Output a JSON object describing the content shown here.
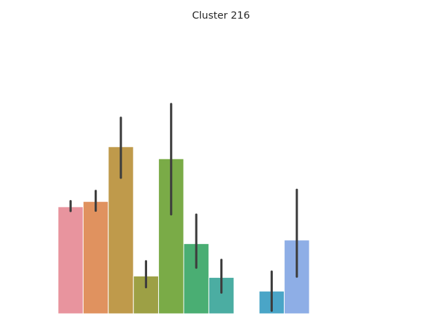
{
  "chart_data": {
    "type": "bar",
    "title": "Cluster 216",
    "xlabel": "",
    "ylabel": "",
    "grid": false,
    "axes_visible": false,
    "ylim": [
      0,
      100
    ],
    "bars": [
      {
        "value": 38.3,
        "err_low": 36.8,
        "err_high": 40.3,
        "color": "#e8949e"
      },
      {
        "value": 40.2,
        "err_low": 36.9,
        "err_high": 44.0,
        "color": "#e0925f"
      },
      {
        "value": 59.8,
        "err_low": 48.7,
        "err_high": 70.2,
        "color": "#bf9a4b"
      },
      {
        "value": 13.5,
        "err_low": 9.5,
        "err_high": 18.8,
        "color": "#9da045"
      },
      {
        "value": 55.5,
        "err_low": 35.6,
        "err_high": 75.1,
        "color": "#7aab47"
      },
      {
        "value": 25.1,
        "err_low": 16.5,
        "err_high": 35.5,
        "color": "#4aae73"
      },
      {
        "value": 13.0,
        "err_low": 7.6,
        "err_high": 19.3,
        "color": "#4bada2"
      },
      {
        "value": 0,
        "err_low": null,
        "err_high": null,
        "color": "#4aa9b8"
      },
      {
        "value": 8.1,
        "err_low": 1.1,
        "err_high": 15.1,
        "color": "#4aa5c7"
      },
      {
        "value": 26.4,
        "err_low": 13.3,
        "err_high": 44.4,
        "color": "#8eaee6"
      }
    ]
  }
}
